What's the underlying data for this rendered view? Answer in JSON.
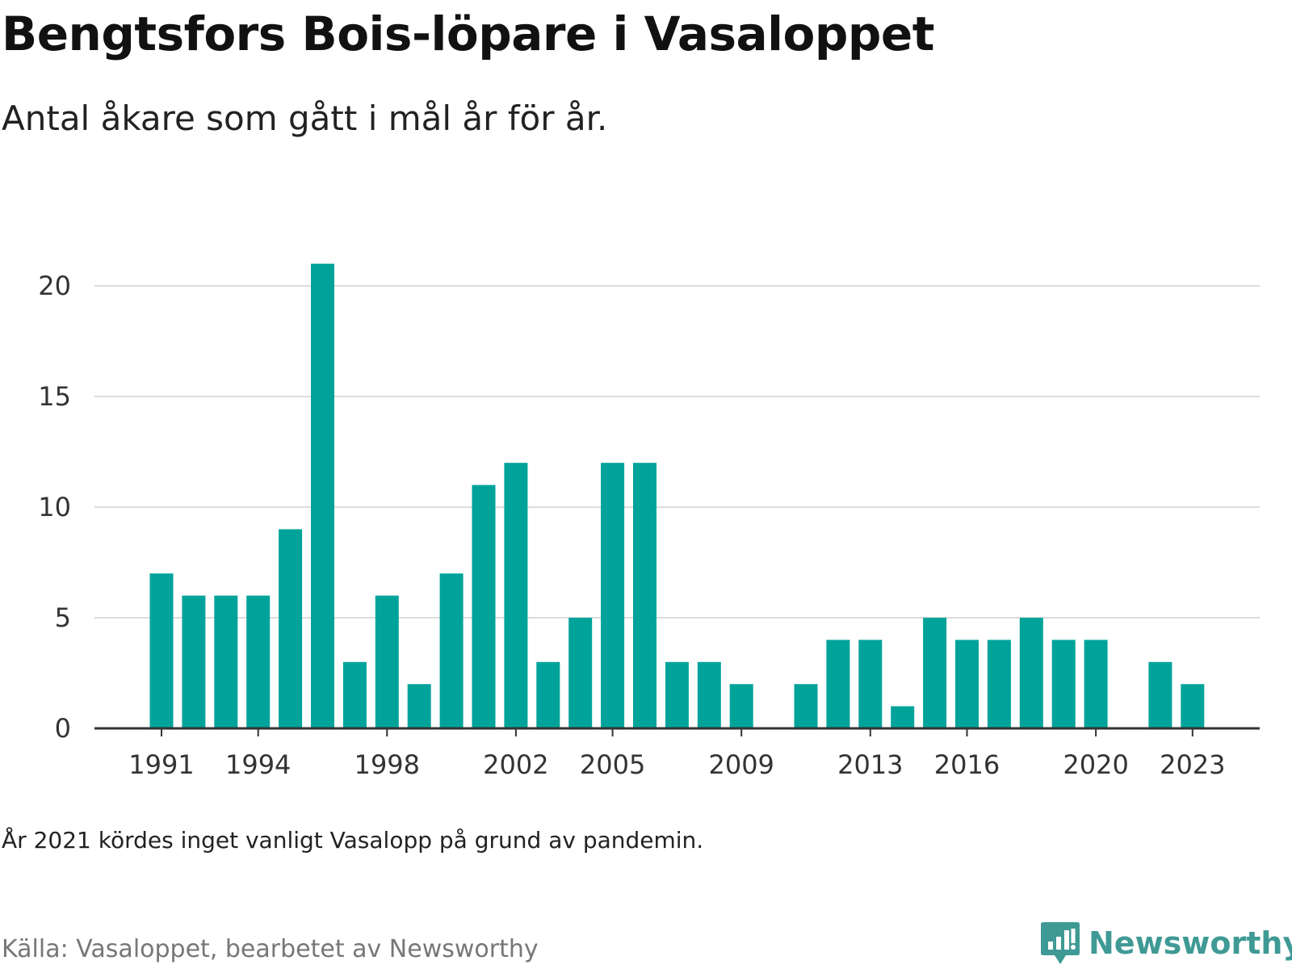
{
  "brand": {
    "name": "Newsworthy",
    "color": "#3f9a95"
  },
  "note": "År 2021 kördes inget vanligt Vasalopp på grund av pandemin.",
  "source": "Källa: Vasaloppet, bearbetet av Newsworthy",
  "chart_data": {
    "type": "bar",
    "title": "Bengtsfors Bois-löpare i Vasaloppet",
    "subtitle": "Antal åkare som gått i mål år för år.",
    "xlabel": "",
    "ylabel": "",
    "bar_color": "#00a39a",
    "grid": true,
    "ylim": [
      0,
      22
    ],
    "y_ticks": [
      0,
      5,
      10,
      15,
      20
    ],
    "x_range": [
      1991,
      2023
    ],
    "x_tick_labels": [
      1991,
      1994,
      1998,
      2002,
      2005,
      2009,
      2013,
      2016,
      2020,
      2023
    ],
    "categories": [
      1991,
      1992,
      1993,
      1994,
      1995,
      1996,
      1997,
      1998,
      1999,
      2000,
      2001,
      2002,
      2003,
      2004,
      2005,
      2006,
      2007,
      2008,
      2009,
      2010,
      2011,
      2012,
      2013,
      2014,
      2015,
      2016,
      2017,
      2018,
      2019,
      2020,
      2021,
      2022,
      2023
    ],
    "values": [
      7,
      6,
      6,
      6,
      9,
      21,
      3,
      6,
      2,
      7,
      11,
      12,
      3,
      5,
      12,
      12,
      3,
      3,
      2,
      0,
      2,
      4,
      4,
      1,
      5,
      4,
      4,
      5,
      4,
      4,
      0,
      3,
      2
    ]
  }
}
